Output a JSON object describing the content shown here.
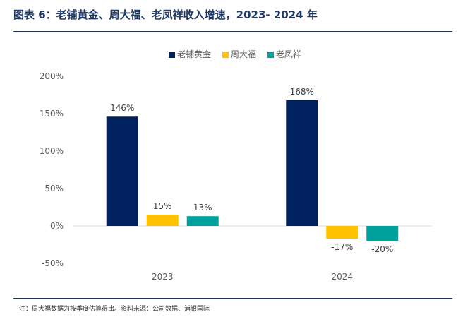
{
  "header": {
    "title": "图表 6：老铺黄金、周大福、老凤祥收入增速，2023- 2024 年"
  },
  "legend": [
    {
      "label": "老铺黄金",
      "color": "#002060"
    },
    {
      "label": "周大福",
      "color": "#FFC000"
    },
    {
      "label": "老凤祥",
      "color": "#00A19A"
    }
  ],
  "chart_data": {
    "type": "bar",
    "categories": [
      "2023",
      "2024"
    ],
    "series": [
      {
        "name": "老铺黄金",
        "values": [
          146,
          168
        ],
        "labels": [
          "146%",
          "168%"
        ],
        "color": "#002060"
      },
      {
        "name": "周大福",
        "values": [
          15,
          -17
        ],
        "labels": [
          "15%",
          "-17%"
        ],
        "color": "#FFC000"
      },
      {
        "name": "老凤祥",
        "values": [
          13,
          -20
        ],
        "labels": [
          "13%",
          "-20%"
        ],
        "color": "#00A19A"
      }
    ],
    "yticks": [
      -50,
      0,
      50,
      100,
      150,
      200
    ],
    "ytick_labels": [
      "-50%",
      "0%",
      "50%",
      "100%",
      "150%",
      "200%"
    ],
    "ylim": [
      -50,
      200
    ],
    "grid": false,
    "legend_position": "top"
  },
  "footer": {
    "note": "注：周大福数据为按季度估算得出。资料来源：公司数据、浦银国际"
  }
}
